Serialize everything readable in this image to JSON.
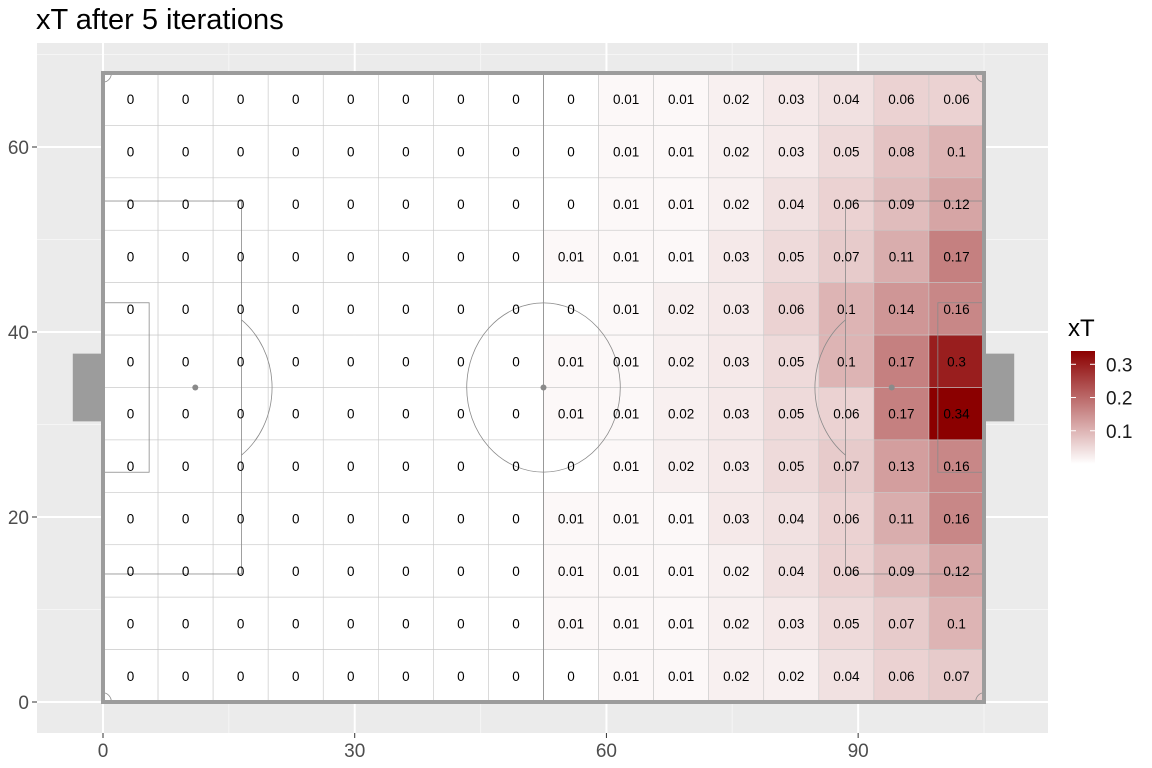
{
  "title": "xT after 5 iterations",
  "chart_data": {
    "type": "heatmap",
    "title": "xT after 5 iterations",
    "xlabel": "",
    "ylabel": "",
    "x_ticks": [
      0,
      30,
      60,
      90
    ],
    "y_ticks": [
      0,
      20,
      40,
      60
    ],
    "xlim": [
      -7.7,
      113.5
    ],
    "ylim": [
      -3.4,
      71.4
    ],
    "pitch_length": 105,
    "pitch_width": 68,
    "grid_cols": 16,
    "grid_rows": 12,
    "legend": {
      "title": "xT",
      "ticks": [
        0.1,
        0.2,
        0.3
      ],
      "range": [
        0,
        0.34
      ],
      "low_color": "#ffffff",
      "high_color": "#8b0000"
    },
    "rows_top_to_bottom": [
      [
        0,
        0,
        0,
        0,
        0,
        0,
        0,
        0,
        0,
        0.01,
        0.01,
        0.02,
        0.03,
        0.04,
        0.06,
        0.06
      ],
      [
        0,
        0,
        0,
        0,
        0,
        0,
        0,
        0,
        0,
        0.01,
        0.01,
        0.02,
        0.03,
        0.05,
        0.08,
        0.1
      ],
      [
        0,
        0,
        0,
        0,
        0,
        0,
        0,
        0,
        0,
        0.01,
        0.01,
        0.02,
        0.04,
        0.06,
        0.09,
        0.12
      ],
      [
        0,
        0,
        0,
        0,
        0,
        0,
        0,
        0,
        0.01,
        0.01,
        0.01,
        0.03,
        0.05,
        0.07,
        0.11,
        0.17
      ],
      [
        0,
        0,
        0,
        0,
        0,
        0,
        0,
        0,
        0,
        0.01,
        0.02,
        0.03,
        0.06,
        0.1,
        0.14,
        0.16
      ],
      [
        0,
        0,
        0,
        0,
        0,
        0,
        0,
        0,
        0.01,
        0.01,
        0.02,
        0.03,
        0.05,
        0.1,
        0.17,
        0.3
      ],
      [
        0,
        0,
        0,
        0,
        0,
        0,
        0,
        0,
        0.01,
        0.01,
        0.02,
        0.03,
        0.05,
        0.06,
        0.17,
        0.34
      ],
      [
        0,
        0,
        0,
        0,
        0,
        0,
        0,
        0,
        0,
        0.01,
        0.02,
        0.03,
        0.05,
        0.07,
        0.13,
        0.16
      ],
      [
        0,
        0,
        0,
        0,
        0,
        0,
        0,
        0,
        0.01,
        0.01,
        0.01,
        0.03,
        0.04,
        0.06,
        0.11,
        0.16
      ],
      [
        0,
        0,
        0,
        0,
        0,
        0,
        0,
        0,
        0.01,
        0.01,
        0.01,
        0.02,
        0.04,
        0.06,
        0.09,
        0.12
      ],
      [
        0,
        0,
        0,
        0,
        0,
        0,
        0,
        0,
        0.01,
        0.01,
        0.01,
        0.02,
        0.03,
        0.05,
        0.07,
        0.1
      ],
      [
        0,
        0,
        0,
        0,
        0,
        0,
        0,
        0,
        0,
        0.01,
        0.01,
        0.02,
        0.02,
        0.04,
        0.06,
        0.07
      ]
    ]
  }
}
